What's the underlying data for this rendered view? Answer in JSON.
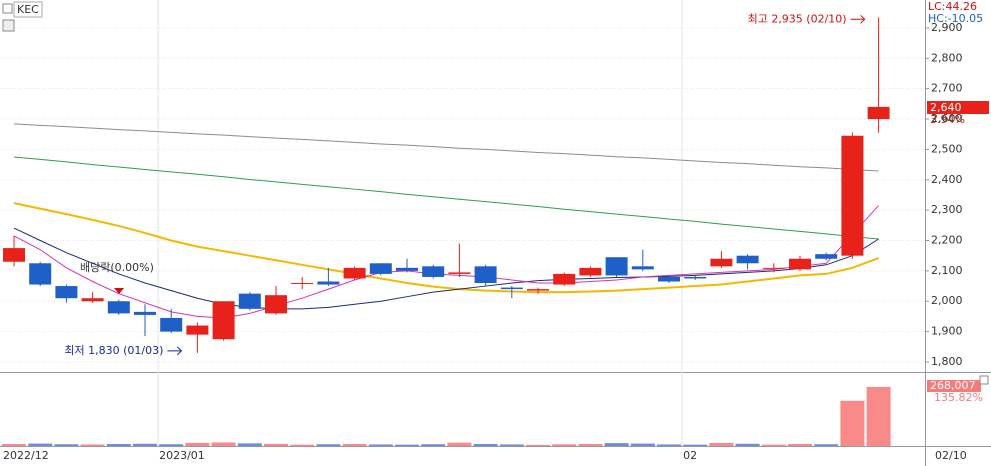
{
  "chart_data": {
    "type": "candlestick",
    "title": "KEC",
    "lc_label": "LC:44.26",
    "hc_label": "HC:-10.05",
    "categories": [
      "2022/12",
      null,
      null,
      null,
      null,
      null,
      "2023/01",
      null,
      null,
      null,
      null,
      null,
      null,
      null,
      null,
      null,
      null,
      null,
      null,
      null,
      null,
      null,
      null,
      null,
      null,
      null,
      "02",
      null,
      null,
      null,
      null,
      null,
      null,
      null
    ],
    "last_date_label": "02/10",
    "open": [
      2130,
      2125,
      2050,
      2000,
      2000,
      1965,
      1945,
      1890,
      1875,
      2025,
      1960,
      2060,
      2065,
      2075,
      2125,
      2110,
      2115,
      2090,
      2115,
      2045,
      2035,
      2055,
      2085,
      2145,
      2115,
      2080,
      2080,
      2115,
      2150,
      2110,
      2105,
      2155,
      2150,
      2600
    ],
    "high": [
      2215,
      2130,
      2055,
      2030,
      2005,
      1990,
      1975,
      1930,
      2000,
      2030,
      2050,
      2080,
      2110,
      2115,
      2125,
      2140,
      2120,
      2190,
      2120,
      2050,
      2045,
      2095,
      2115,
      2145,
      2170,
      2085,
      2085,
      2165,
      2155,
      2125,
      2150,
      2160,
      2555,
      2935
    ],
    "low": [
      2115,
      2050,
      1995,
      1995,
      1955,
      1885,
      1895,
      1830,
      1870,
      1970,
      1955,
      2040,
      2050,
      2070,
      2085,
      2095,
      2075,
      2080,
      2050,
      2010,
      2025,
      2050,
      2080,
      2080,
      2100,
      2060,
      2070,
      2110,
      2105,
      2095,
      2100,
      2135,
      2140,
      2555
    ],
    "close": [
      2175,
      2055,
      2010,
      2010,
      1960,
      1955,
      1900,
      1920,
      2000,
      1975,
      2020,
      2060,
      2055,
      2110,
      2090,
      2100,
      2080,
      2095,
      2060,
      2040,
      2040,
      2090,
      2110,
      2085,
      2105,
      2065,
      2075,
      2140,
      2125,
      2110,
      2140,
      2140,
      2545,
      2640
    ],
    "volume": [
      9000,
      11000,
      8000,
      7000,
      9000,
      10000,
      8000,
      14000,
      16000,
      12000,
      10000,
      6000,
      8000,
      9000,
      7000,
      6000,
      8000,
      15000,
      9000,
      7000,
      5000,
      8000,
      9000,
      13000,
      11000,
      7000,
      6000,
      14000,
      10000,
      6000,
      9000,
      8000,
      205000,
      268007
    ],
    "up_color": "#e8221b",
    "down_color": "#1f5fc8",
    "vol_up_color": "#f88a8a",
    "vol_down_color": "#6b8fd8",
    "moving_averages": [
      {
        "color": "#8c8c8c",
        "values": [
          2584,
          2579,
          2575,
          2570,
          2565,
          2561,
          2556,
          2551,
          2547,
          2542,
          2537,
          2533,
          2528,
          2523,
          2518,
          2514,
          2509,
          2504,
          2500,
          2495,
          2490,
          2486,
          2481,
          2476,
          2472,
          2467,
          2462,
          2457,
          2453,
          2448,
          2443,
          2439,
          2434,
          2429
        ]
      },
      {
        "color": "#2e9e4f",
        "values": [
          2475,
          2467,
          2459,
          2450,
          2442,
          2434,
          2426,
          2418,
          2410,
          2401,
          2393,
          2385,
          2377,
          2369,
          2361,
          2352,
          2344,
          2336,
          2328,
          2320,
          2312,
          2303,
          2295,
          2287,
          2279,
          2271,
          2263,
          2254,
          2246,
          2238,
          2230,
          2222,
          2213,
          2205
        ]
      },
      {
        "color": "#f5b800",
        "values": [
          2323,
          2305,
          2287,
          2268,
          2248,
          2225,
          2200,
          2180,
          2165,
          2150,
          2135,
          2120,
          2105,
          2090,
          2075,
          2060,
          2048,
          2040,
          2035,
          2032,
          2030,
          2030,
          2032,
          2035,
          2040,
          2045,
          2050,
          2055,
          2065,
          2075,
          2085,
          2090,
          2110,
          2142
        ]
      },
      {
        "color": "#1a2a7a",
        "values": [
          2241,
          2200,
          2160,
          2125,
          2090,
          2060,
          2035,
          2010,
          1990,
          1980,
          1975,
          1975,
          1980,
          1990,
          2000,
          2015,
          2030,
          2040,
          2050,
          2060,
          2068,
          2072,
          2075,
          2078,
          2080,
          2082,
          2085,
          2090,
          2095,
          2100,
          2108,
          2120,
          2150,
          2205
        ]
      },
      {
        "color": "#d633b5",
        "values": [
          2215,
          2170,
          2110,
          2065,
          2025,
          1995,
          1965,
          1950,
          1945,
          1960,
          1985,
          2010,
          2040,
          2070,
          2095,
          2100,
          2090,
          2085,
          2080,
          2070,
          2060,
          2060,
          2065,
          2070,
          2080,
          2085,
          2090,
          2095,
          2100,
          2105,
          2115,
          2125,
          2220,
          2315
        ]
      }
    ],
    "ylim": [
      1767,
      2992
    ],
    "yticks": [
      {
        "value": 1800,
        "label": "1,800"
      },
      {
        "value": 1900,
        "label": "1,900"
      },
      {
        "value": 2000,
        "label": "2,000"
      },
      {
        "value": 2100,
        "label": "2,100"
      },
      {
        "value": 2200,
        "label": "2,200"
      },
      {
        "value": 2300,
        "label": "2,300"
      },
      {
        "value": 2400,
        "label": "2,400"
      },
      {
        "value": 2500,
        "label": "2,500"
      },
      {
        "value": 2600,
        "label": "2,600"
      },
      {
        "value": 2700,
        "label": "2,700"
      },
      {
        "value": 2800,
        "label": "2,800"
      },
      {
        "value": 2900,
        "label": "2,900"
      }
    ],
    "volume_lim": [
      0,
      322000
    ],
    "last_price": {
      "value": 2640,
      "label": "2,640"
    },
    "change_label": "3.94%",
    "volume_last": {
      "value": 268007,
      "label": "268,007"
    },
    "volume_change_label": "135.82%",
    "max_annotation": "최고 2,935 (02/10)",
    "min_annotation": "최저 1,830 (01/03)",
    "dividend_annotation": "배당락(0.00%)"
  }
}
